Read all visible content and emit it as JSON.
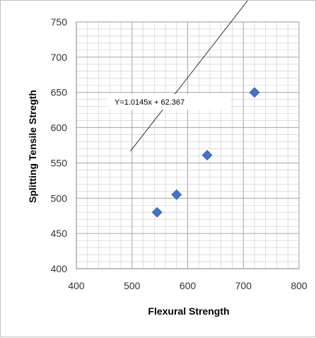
{
  "chart_data": {
    "type": "scatter",
    "title": "",
    "xlabel": "Flexural Strength",
    "ylabel": "Splitting Tensile Stregth",
    "xlim": [
      400,
      800
    ],
    "ylim": [
      400,
      750
    ],
    "x_ticks": [
      400,
      500,
      600,
      700,
      800
    ],
    "y_ticks": [
      400,
      450,
      500,
      550,
      600,
      650,
      700,
      750
    ],
    "grid": true,
    "series": [
      {
        "points": [
          {
            "x": 545,
            "y": 480
          },
          {
            "x": 580,
            "y": 505
          },
          {
            "x": 635,
            "y": 561
          },
          {
            "x": 720,
            "y": 650
          }
        ],
        "marker": "diamond",
        "color": "#4472c4"
      }
    ],
    "trendline": {
      "slope": 1.0145,
      "intercept": 62.367,
      "x_range": [
        497,
        772
      ],
      "label": "Y=1.0145x + 62.367"
    }
  }
}
